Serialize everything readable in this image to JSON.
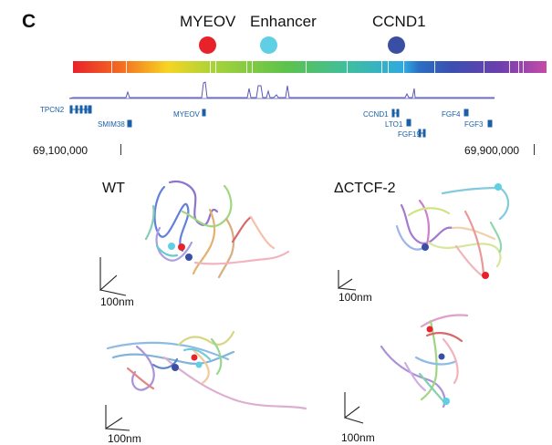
{
  "panel_label": "C",
  "features": [
    {
      "label": "MYEOV",
      "color": "#e8222a"
    },
    {
      "label": "Enhancer",
      "color": "#5fcfe3"
    },
    {
      "label": "CCND1",
      "color": "#3a4fa3"
    }
  ],
  "genes": [
    "TPCN2",
    "SMIM38",
    "MYEOV",
    "CCND1",
    "LTO1",
    "FGF19",
    "FGF4",
    "FGF3"
  ],
  "coordinates": {
    "start": "69,100,000",
    "end": "69,900,000"
  },
  "conditions": [
    "WT",
    "ΔCTCF-2"
  ],
  "scale_bar_label": "100nm",
  "colors": {
    "signal_track": "#5a5ab8",
    "gene_track": "#1a5fa8"
  }
}
